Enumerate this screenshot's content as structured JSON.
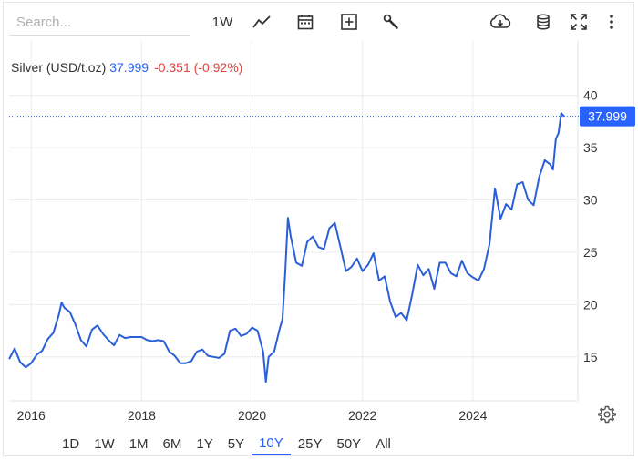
{
  "toolbar": {
    "search_placeholder": "Search...",
    "interval": "1W",
    "icons": [
      "line-chart-icon",
      "calendar-icon",
      "add-indicator-icon",
      "wrench-icon",
      "download-icon",
      "database-icon",
      "fullscreen-icon",
      "more-icon"
    ]
  },
  "legend": {
    "name": "Silver (USD/t.oz)",
    "price": "37.999",
    "change": "-0.351 (-0.92%)",
    "price_color": "#2962ff",
    "change_color": "#e0433b"
  },
  "ranges": {
    "items": [
      "1D",
      "1W",
      "1M",
      "6M",
      "1Y",
      "5Y",
      "10Y",
      "25Y",
      "50Y",
      "All"
    ],
    "active": "10Y"
  },
  "chart_data": {
    "type": "line",
    "series": [
      {
        "name": "Silver (USD/t.oz)",
        "color": "#2b5fd9",
        "x": [
          2015.6,
          2015.7,
          2015.8,
          2015.9,
          2016.0,
          2016.1,
          2016.2,
          2016.3,
          2016.4,
          2016.5,
          2016.55,
          2016.6,
          2016.7,
          2016.8,
          2016.9,
          2017.0,
          2017.1,
          2017.2,
          2017.3,
          2017.4,
          2017.5,
          2017.6,
          2017.7,
          2017.8,
          2017.9,
          2018.0,
          2018.1,
          2018.2,
          2018.3,
          2018.4,
          2018.5,
          2018.6,
          2018.7,
          2018.8,
          2018.9,
          2019.0,
          2019.1,
          2019.2,
          2019.3,
          2019.4,
          2019.5,
          2019.6,
          2019.7,
          2019.8,
          2019.9,
          2020.0,
          2020.1,
          2020.2,
          2020.25,
          2020.3,
          2020.4,
          2020.5,
          2020.55,
          2020.6,
          2020.65,
          2020.7,
          2020.8,
          2020.9,
          2021.0,
          2021.1,
          2021.2,
          2021.3,
          2021.4,
          2021.5,
          2021.6,
          2021.7,
          2021.8,
          2021.9,
          2022.0,
          2022.1,
          2022.2,
          2022.3,
          2022.4,
          2022.5,
          2022.6,
          2022.7,
          2022.8,
          2022.9,
          2023.0,
          2023.1,
          2023.2,
          2023.3,
          2023.4,
          2023.5,
          2023.6,
          2023.7,
          2023.8,
          2023.9,
          2024.0,
          2024.1,
          2024.2,
          2024.3,
          2024.4,
          2024.5,
          2024.6,
          2024.7,
          2024.8,
          2024.9,
          2025.0,
          2025.1,
          2025.2,
          2025.3,
          2025.4,
          2025.45,
          2025.5,
          2025.55,
          2025.6,
          2025.65
        ],
        "y": [
          14.8,
          15.8,
          14.5,
          14.0,
          14.4,
          15.2,
          15.6,
          16.7,
          17.3,
          19.0,
          20.2,
          19.7,
          19.3,
          18.1,
          16.6,
          16.0,
          17.6,
          18.0,
          17.2,
          16.6,
          16.1,
          17.1,
          16.8,
          16.9,
          16.9,
          16.9,
          16.6,
          16.5,
          16.6,
          16.5,
          15.5,
          15.1,
          14.4,
          14.4,
          14.6,
          15.5,
          15.7,
          15.1,
          15.0,
          14.9,
          15.3,
          17.5,
          17.7,
          17.0,
          17.2,
          17.8,
          17.5,
          15.5,
          12.6,
          15.0,
          15.5,
          17.7,
          18.6,
          23.0,
          28.3,
          26.5,
          24.0,
          23.7,
          26.0,
          26.5,
          25.5,
          25.3,
          27.3,
          27.8,
          25.5,
          23.2,
          23.6,
          24.4,
          23.2,
          23.8,
          24.9,
          22.3,
          22.7,
          20.3,
          18.8,
          19.2,
          18.5,
          21.0,
          23.8,
          22.8,
          23.4,
          21.5,
          24.0,
          24.0,
          23.0,
          22.7,
          24.2,
          23.0,
          22.6,
          22.3,
          23.4,
          25.8,
          31.1,
          28.2,
          29.6,
          29.1,
          31.5,
          31.7,
          30.0,
          29.5,
          32.2,
          33.8,
          33.4,
          32.9,
          35.8,
          36.4,
          38.3,
          37.999
        ],
        "last": 37.999
      }
    ],
    "ylim": [
      10.8,
      45.2
    ],
    "yticks": [
      15,
      20,
      25,
      30,
      35,
      40
    ],
    "xlim": [
      2015.6,
      2025.9
    ],
    "xticks": [
      2016,
      2018,
      2020,
      2022,
      2024
    ],
    "xtick_labels": [
      "2016",
      "2018",
      "2020",
      "2022",
      "2024"
    ],
    "grid": true,
    "last_value_label": "37.999"
  }
}
